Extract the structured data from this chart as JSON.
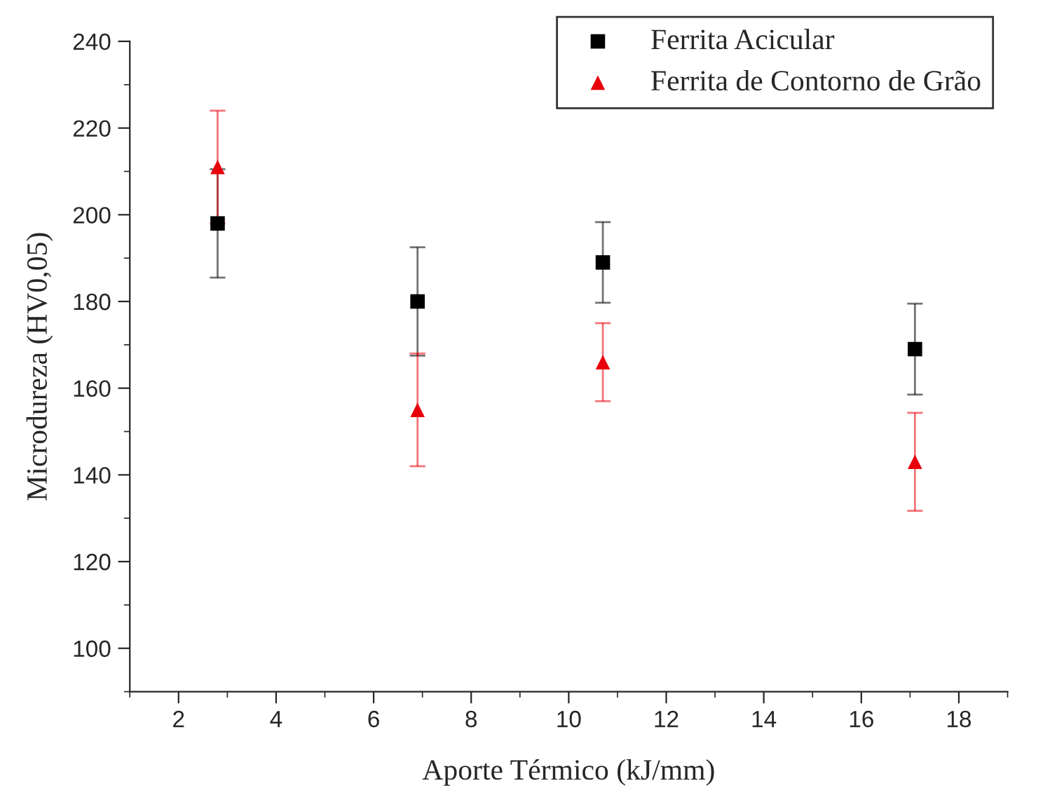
{
  "chart_data": {
    "type": "scatter",
    "xlabel": "Aporte Térmico (kJ/mm)",
    "ylabel": "Microdureza (HV0,05)",
    "xlim": [
      1,
      19
    ],
    "xticks": [
      2,
      4,
      6,
      8,
      10,
      12,
      14,
      16,
      18
    ],
    "ylim": [
      90,
      240
    ],
    "yticks": [
      100,
      120,
      140,
      160,
      180,
      200,
      220,
      240
    ],
    "grid": false,
    "legend": "top right",
    "series": [
      {
        "name": "Ferrita Acicular",
        "color": "#000000",
        "marker": "square",
        "x": [
          2.8,
          6.9,
          10.7,
          17.1
        ],
        "values": [
          198,
          180,
          189,
          169
        ],
        "errors": [
          12.5,
          12.5,
          9.3,
          10.5
        ]
      },
      {
        "name": "Ferrita de Contorno de Grão",
        "color": "#e8000b",
        "marker": "triangle",
        "x": [
          2.8,
          6.9,
          10.7,
          17.1
        ],
        "values": [
          211,
          155,
          166,
          143
        ],
        "errors": [
          13,
          13,
          9,
          11.3
        ]
      }
    ]
  }
}
